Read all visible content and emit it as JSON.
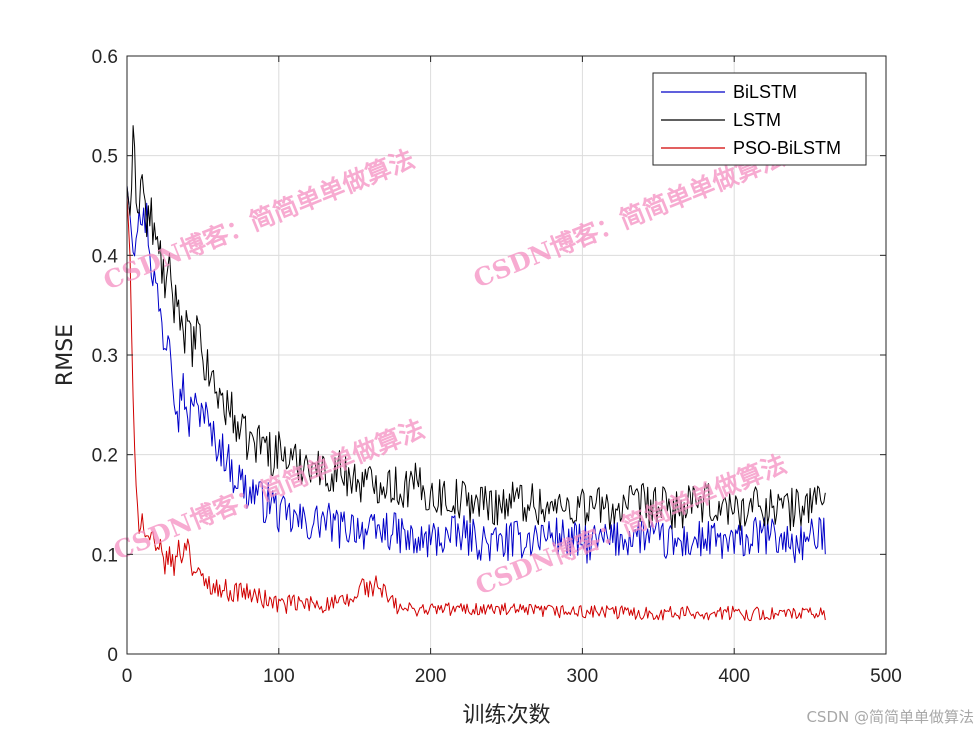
{
  "chart_data": {
    "type": "line",
    "title": "",
    "xlabel": "训练次数",
    "ylabel": "RMSE",
    "xlim": [
      0,
      500
    ],
    "ylim": [
      0,
      0.6
    ],
    "xticks": [
      0,
      100,
      200,
      300,
      400,
      500
    ],
    "yticks": [
      0,
      0.1,
      0.2,
      0.3,
      0.4,
      0.5,
      0.6
    ],
    "grid": true,
    "legend_position": "top-right",
    "series": [
      {
        "name": "BiLSTM",
        "color": "#0000c8",
        "points": [
          [
            0,
            0.47
          ],
          [
            2,
            0.44
          ],
          [
            5,
            0.41
          ],
          [
            8,
            0.46
          ],
          [
            10,
            0.43
          ],
          [
            13,
            0.44
          ],
          [
            16,
            0.39
          ],
          [
            19,
            0.37
          ],
          [
            22,
            0.34
          ],
          [
            25,
            0.31
          ],
          [
            28,
            0.33
          ],
          [
            31,
            0.27
          ],
          [
            34,
            0.24
          ],
          [
            37,
            0.28
          ],
          [
            40,
            0.22
          ],
          [
            43,
            0.26
          ],
          [
            46,
            0.24
          ],
          [
            50,
            0.25
          ],
          [
            55,
            0.22
          ],
          [
            60,
            0.21
          ],
          [
            65,
            0.2
          ],
          [
            70,
            0.18
          ],
          [
            75,
            0.175
          ],
          [
            80,
            0.16
          ],
          [
            85,
            0.165
          ],
          [
            90,
            0.15
          ],
          [
            95,
            0.155
          ],
          [
            100,
            0.14
          ],
          [
            110,
            0.135
          ],
          [
            120,
            0.13
          ],
          [
            130,
            0.135
          ],
          [
            140,
            0.125
          ],
          [
            150,
            0.13
          ],
          [
            160,
            0.12
          ],
          [
            170,
            0.125
          ],
          [
            180,
            0.12
          ],
          [
            190,
            0.11
          ],
          [
            200,
            0.115
          ],
          [
            220,
            0.12
          ],
          [
            240,
            0.11
          ],
          [
            260,
            0.115
          ],
          [
            280,
            0.12
          ],
          [
            300,
            0.11
          ],
          [
            320,
            0.115
          ],
          [
            340,
            0.12
          ],
          [
            360,
            0.11
          ],
          [
            380,
            0.115
          ],
          [
            400,
            0.11
          ],
          [
            420,
            0.12
          ],
          [
            440,
            0.11
          ],
          [
            460,
            0.12
          ]
        ]
      },
      {
        "name": "LSTM",
        "color": "#000000",
        "points": [
          [
            0,
            0.47
          ],
          [
            2,
            0.44
          ],
          [
            4,
            0.51
          ],
          [
            7,
            0.45
          ],
          [
            10,
            0.48
          ],
          [
            13,
            0.43
          ],
          [
            16,
            0.44
          ],
          [
            19,
            0.41
          ],
          [
            22,
            0.4
          ],
          [
            25,
            0.37
          ],
          [
            28,
            0.38
          ],
          [
            31,
            0.35
          ],
          [
            34,
            0.36
          ],
          [
            37,
            0.32
          ],
          [
            40,
            0.33
          ],
          [
            43,
            0.3
          ],
          [
            46,
            0.33
          ],
          [
            50,
            0.29
          ],
          [
            55,
            0.28
          ],
          [
            60,
            0.26
          ],
          [
            65,
            0.25
          ],
          [
            70,
            0.24
          ],
          [
            75,
            0.22
          ],
          [
            80,
            0.215
          ],
          [
            85,
            0.21
          ],
          [
            90,
            0.215
          ],
          [
            95,
            0.2
          ],
          [
            100,
            0.205
          ],
          [
            110,
            0.19
          ],
          [
            120,
            0.195
          ],
          [
            130,
            0.18
          ],
          [
            140,
            0.185
          ],
          [
            150,
            0.175
          ],
          [
            160,
            0.17
          ],
          [
            170,
            0.175
          ],
          [
            180,
            0.165
          ],
          [
            190,
            0.17
          ],
          [
            200,
            0.16
          ],
          [
            220,
            0.155
          ],
          [
            240,
            0.15
          ],
          [
            260,
            0.155
          ],
          [
            280,
            0.145
          ],
          [
            300,
            0.15
          ],
          [
            320,
            0.145
          ],
          [
            340,
            0.15
          ],
          [
            360,
            0.145
          ],
          [
            380,
            0.15
          ],
          [
            400,
            0.145
          ],
          [
            420,
            0.15
          ],
          [
            440,
            0.145
          ],
          [
            460,
            0.16
          ]
        ]
      },
      {
        "name": "PSO-BiLSTM",
        "color": "#d00000",
        "points": [
          [
            0,
            0.46
          ],
          [
            2,
            0.4
          ],
          [
            4,
            0.25
          ],
          [
            6,
            0.16
          ],
          [
            8,
            0.13
          ],
          [
            10,
            0.14
          ],
          [
            13,
            0.115
          ],
          [
            16,
            0.12
          ],
          [
            19,
            0.1
          ],
          [
            22,
            0.105
          ],
          [
            25,
            0.09
          ],
          [
            28,
            0.1
          ],
          [
            31,
            0.085
          ],
          [
            34,
            0.11
          ],
          [
            37,
            0.095
          ],
          [
            40,
            0.12
          ],
          [
            43,
            0.085
          ],
          [
            46,
            0.08
          ],
          [
            50,
            0.075
          ],
          [
            55,
            0.07
          ],
          [
            60,
            0.065
          ],
          [
            65,
            0.065
          ],
          [
            70,
            0.06
          ],
          [
            75,
            0.065
          ],
          [
            80,
            0.06
          ],
          [
            90,
            0.055
          ],
          [
            100,
            0.05
          ],
          [
            110,
            0.05
          ],
          [
            120,
            0.05
          ],
          [
            130,
            0.05
          ],
          [
            140,
            0.05
          ],
          [
            150,
            0.055
          ],
          [
            155,
            0.07
          ],
          [
            160,
            0.065
          ],
          [
            165,
            0.07
          ],
          [
            170,
            0.06
          ],
          [
            175,
            0.05
          ],
          [
            180,
            0.045
          ],
          [
            190,
            0.045
          ],
          [
            200,
            0.045
          ],
          [
            220,
            0.045
          ],
          [
            240,
            0.045
          ],
          [
            260,
            0.043
          ],
          [
            280,
            0.043
          ],
          [
            300,
            0.042
          ],
          [
            320,
            0.042
          ],
          [
            340,
            0.041
          ],
          [
            360,
            0.041
          ],
          [
            380,
            0.041
          ],
          [
            400,
            0.041
          ],
          [
            420,
            0.04
          ],
          [
            440,
            0.04
          ],
          [
            460,
            0.04
          ]
        ]
      }
    ]
  },
  "watermarks": [
    "CSDN博客：简简单单做算法",
    "CSDN博客：简简单单做算法",
    "CSDN博客：简简单单做算法",
    "CSDN博客：简简单单做算法"
  ],
  "credit": "CSDN @简简单单做算法"
}
